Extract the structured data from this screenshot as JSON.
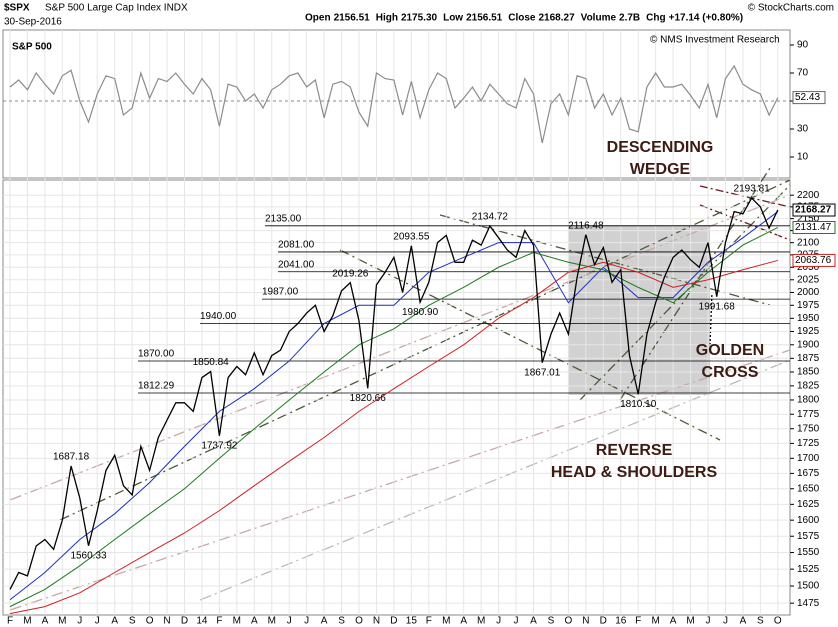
{
  "header": {
    "symbol": "$SPX",
    "name": "S&P 500 Large Cap Index INDX",
    "date": "30-Sep-2016",
    "stats": [
      {
        "label": "Open",
        "value": "2156.51"
      },
      {
        "label": "High",
        "value": "2175.30"
      },
      {
        "label": "Low",
        "value": "2156.51"
      },
      {
        "label": "Close",
        "value": "2168.27"
      },
      {
        "label": "Volume",
        "value": "2.7B"
      },
      {
        "label": "Chg",
        "value": "+17.14 (+0.80%)"
      }
    ],
    "credit": "© StockCharts.com"
  },
  "chart_data": [
    {
      "type": "line",
      "log_scale": true,
      "watermark": "S&P 500",
      "credit": "© NMS Investment Research",
      "categories": [
        "F",
        null,
        "M",
        null,
        "A",
        null,
        "M",
        null,
        "J",
        null,
        "J",
        null,
        "A",
        null,
        "S",
        null,
        "O",
        null,
        "N",
        null,
        "D",
        null,
        "14",
        null,
        "F",
        null,
        "M",
        null,
        "A",
        null,
        "M",
        null,
        "J",
        null,
        "J",
        null,
        "A",
        null,
        "S",
        null,
        "O",
        null,
        "N",
        null,
        "D",
        null,
        "15",
        null,
        "F",
        null,
        "M",
        null,
        "A",
        null,
        "M",
        null,
        "J",
        null,
        "J",
        null,
        "A",
        null,
        "S",
        null,
        "O",
        null,
        "N",
        null,
        "D",
        null,
        "16",
        null,
        "F",
        null,
        "M",
        null,
        "A",
        null,
        "M",
        null,
        "J",
        null,
        "J",
        null,
        "A",
        null,
        "S",
        null,
        "O"
      ],
      "series": [
        {
          "color": "#000000",
          "values": [
            1495,
            1520,
            1515,
            1560,
            1570,
            1555,
            1600,
            1687.18,
            1635,
            1560.33,
            1615,
            1680,
            1705,
            1655,
            1640,
            1720,
            1680,
            1735,
            1765,
            1795,
            1795,
            1780,
            1840,
            1850.84,
            1737.92,
            1840,
            1860,
            1845,
            1885,
            1845,
            1880,
            1890,
            1925,
            1940,
            1960,
            1975,
            1925,
            1955,
            2003,
            2019.26,
            1945,
            1820.66,
            2015,
            2040,
            2070,
            2000,
            2093.55,
            1980.9,
            2020,
            2100,
            2115,
            2060,
            2060,
            2105,
            2095,
            2134.72,
            2110,
            2085,
            2070,
            2125,
            2095,
            1867.01,
            1920,
            1960,
            1920,
            2030,
            2116.48,
            2055,
            2090,
            2020,
            2045,
            1880,
            1810.1,
            1920,
            1980,
            2030,
            2070,
            2085,
            2065,
            2050,
            2100,
            1991.68,
            2100,
            2165,
            2160,
            2193.81,
            2175,
            2130,
            2168.27
          ],
          "value_labels": [
            null,
            null,
            null,
            null,
            null,
            null,
            null,
            "1687.18",
            null,
            "1560.33",
            null,
            null,
            null,
            null,
            null,
            null,
            null,
            null,
            null,
            null,
            null,
            null,
            null,
            "1850.84",
            "1737.92",
            null,
            null,
            null,
            null,
            null,
            null,
            null,
            null,
            null,
            null,
            null,
            null,
            null,
            null,
            "2019.26",
            null,
            "1820.66",
            null,
            null,
            null,
            null,
            "2093.55",
            "1980.90",
            null,
            null,
            null,
            null,
            null,
            null,
            null,
            "2134.72",
            null,
            null,
            null,
            null,
            null,
            "1867.01",
            null,
            null,
            null,
            null,
            "2116.48",
            null,
            null,
            null,
            null,
            null,
            "1810.10",
            null,
            null,
            null,
            null,
            null,
            null,
            null,
            null,
            "1991.68",
            null,
            null,
            null,
            "2193.81",
            null,
            null,
            null
          ]
        }
      ],
      "moving_averages": {
        "x": [
          0,
          4,
          8,
          12,
          16,
          20,
          24,
          28,
          32,
          36,
          40,
          44,
          48,
          52,
          56,
          60,
          64,
          68,
          72,
          76,
          80,
          84,
          88
        ],
        "series": [
          {
            "color": "#1f2fbf",
            "values": [
              1480,
              1520,
              1570,
              1610,
              1660,
              1720,
              1780,
              1820,
              1870,
              1940,
              1975,
              1975,
              2040,
              2070,
              2100,
              2100,
              1980,
              2050,
              1990,
              1990,
              2060,
              2110,
              2165
            ]
          },
          {
            "color": "#1d7a1d",
            "values": [
              1470,
              1495,
              1530,
              1570,
              1610,
              1650,
              1700,
              1750,
              1800,
              1850,
              1900,
              1930,
              1975,
              2010,
              2050,
              2080,
              2060,
              2045,
              2010,
              1980,
              2040,
              2095,
              2131.47
            ]
          },
          {
            "color": "#d02020",
            "values": [
              1460,
              1470,
              1490,
              1520,
              1550,
              1580,
              1615,
              1655,
              1695,
              1735,
              1780,
              1820,
              1860,
              1900,
              1950,
              1990,
              2040,
              2060,
              2040,
              2010,
              2025,
              2045,
              2063.76
            ]
          }
        ]
      },
      "levels": [
        {
          "value": 2135,
          "label": "2135.00"
        },
        {
          "value": 2081,
          "label": "2081.00"
        },
        {
          "value": 2041,
          "label": "2041.00"
        },
        {
          "value": 1987,
          "label": "1987.00"
        },
        {
          "value": 1940,
          "label": "1940.00"
        },
        {
          "value": 1870,
          "label": "1870.00"
        },
        {
          "value": 1812.29,
          "label": "1812.29"
        }
      ],
      "annotations": [
        {
          "lines": [
            "DESCENDING",
            "WEDGE"
          ]
        },
        {
          "lines": [
            "GOLDEN",
            "CROSS"
          ]
        },
        {
          "lines": [
            "REVERSE",
            "HEAD & SHOULDERS"
          ]
        }
      ],
      "ylim": [
        1458,
        2233
      ],
      "yticks": [
        1475,
        1500,
        1525,
        1550,
        1575,
        1600,
        1625,
        1650,
        1675,
        1700,
        1725,
        1750,
        1775,
        1800,
        1825,
        1850,
        1875,
        1900,
        1925,
        1950,
        1975,
        2000,
        2025,
        2050,
        2075,
        2100,
        2125,
        2150,
        2175,
        2200
      ]
    },
    {
      "type": "line",
      "color": "#8c8c8c",
      "reference_line": 50,
      "values": [
        60,
        65,
        58,
        70,
        62,
        55,
        68,
        72,
        50,
        35,
        55,
        68,
        66,
        40,
        45,
        70,
        52,
        66,
        64,
        70,
        62,
        55,
        66,
        58,
        32,
        62,
        60,
        50,
        55,
        45,
        58,
        62,
        68,
        70,
        60,
        65,
        38,
        62,
        64,
        60,
        42,
        32,
        70,
        66,
        65,
        40,
        64,
        38,
        58,
        70,
        66,
        45,
        52,
        60,
        50,
        62,
        55,
        48,
        45,
        66,
        55,
        20,
        48,
        55,
        40,
        68,
        66,
        45,
        55,
        40,
        52,
        30,
        28,
        60,
        70,
        60,
        60,
        62,
        54,
        45,
        62,
        38,
        66,
        75,
        62,
        58,
        55,
        40,
        52.43
      ],
      "ylim": [
        0,
        100
      ],
      "yticks": [
        10,
        30,
        50,
        70,
        90
      ]
    }
  ]
}
